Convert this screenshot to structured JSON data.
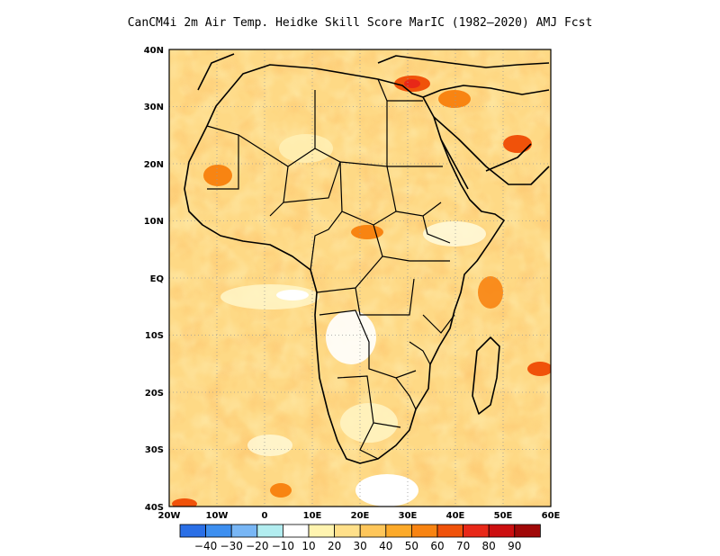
{
  "title": "CanCM4i  2m Air Temp. Heidke Skill Score MarIC (1982–2020) AMJ Fcst",
  "map": {
    "lon_range": [
      -20,
      60
    ],
    "lat_range": [
      -40,
      40
    ],
    "x_ticks": [
      "20W",
      "10W",
      "0",
      "10E",
      "20E",
      "30E",
      "40E",
      "50E",
      "60E"
    ],
    "y_ticks": [
      "40N",
      "30N",
      "20N",
      "10N",
      "EQ",
      "10S",
      "20S",
      "30S",
      "40S"
    ]
  },
  "colorbar": {
    "colors": [
      "#2a6fe6",
      "#3d8ff0",
      "#78b6f5",
      "#b2edf0",
      "#ffffff",
      "#fff4b0",
      "#ffe08a",
      "#fec65a",
      "#fcaa2a",
      "#f88412",
      "#f0520a",
      "#e82818",
      "#cc0f10",
      "#a00808"
    ],
    "labels": [
      "−40",
      "−30",
      "−20",
      "−10",
      "10",
      "20",
      "30",
      "40",
      "50",
      "60",
      "70",
      "80",
      "90"
    ]
  }
}
